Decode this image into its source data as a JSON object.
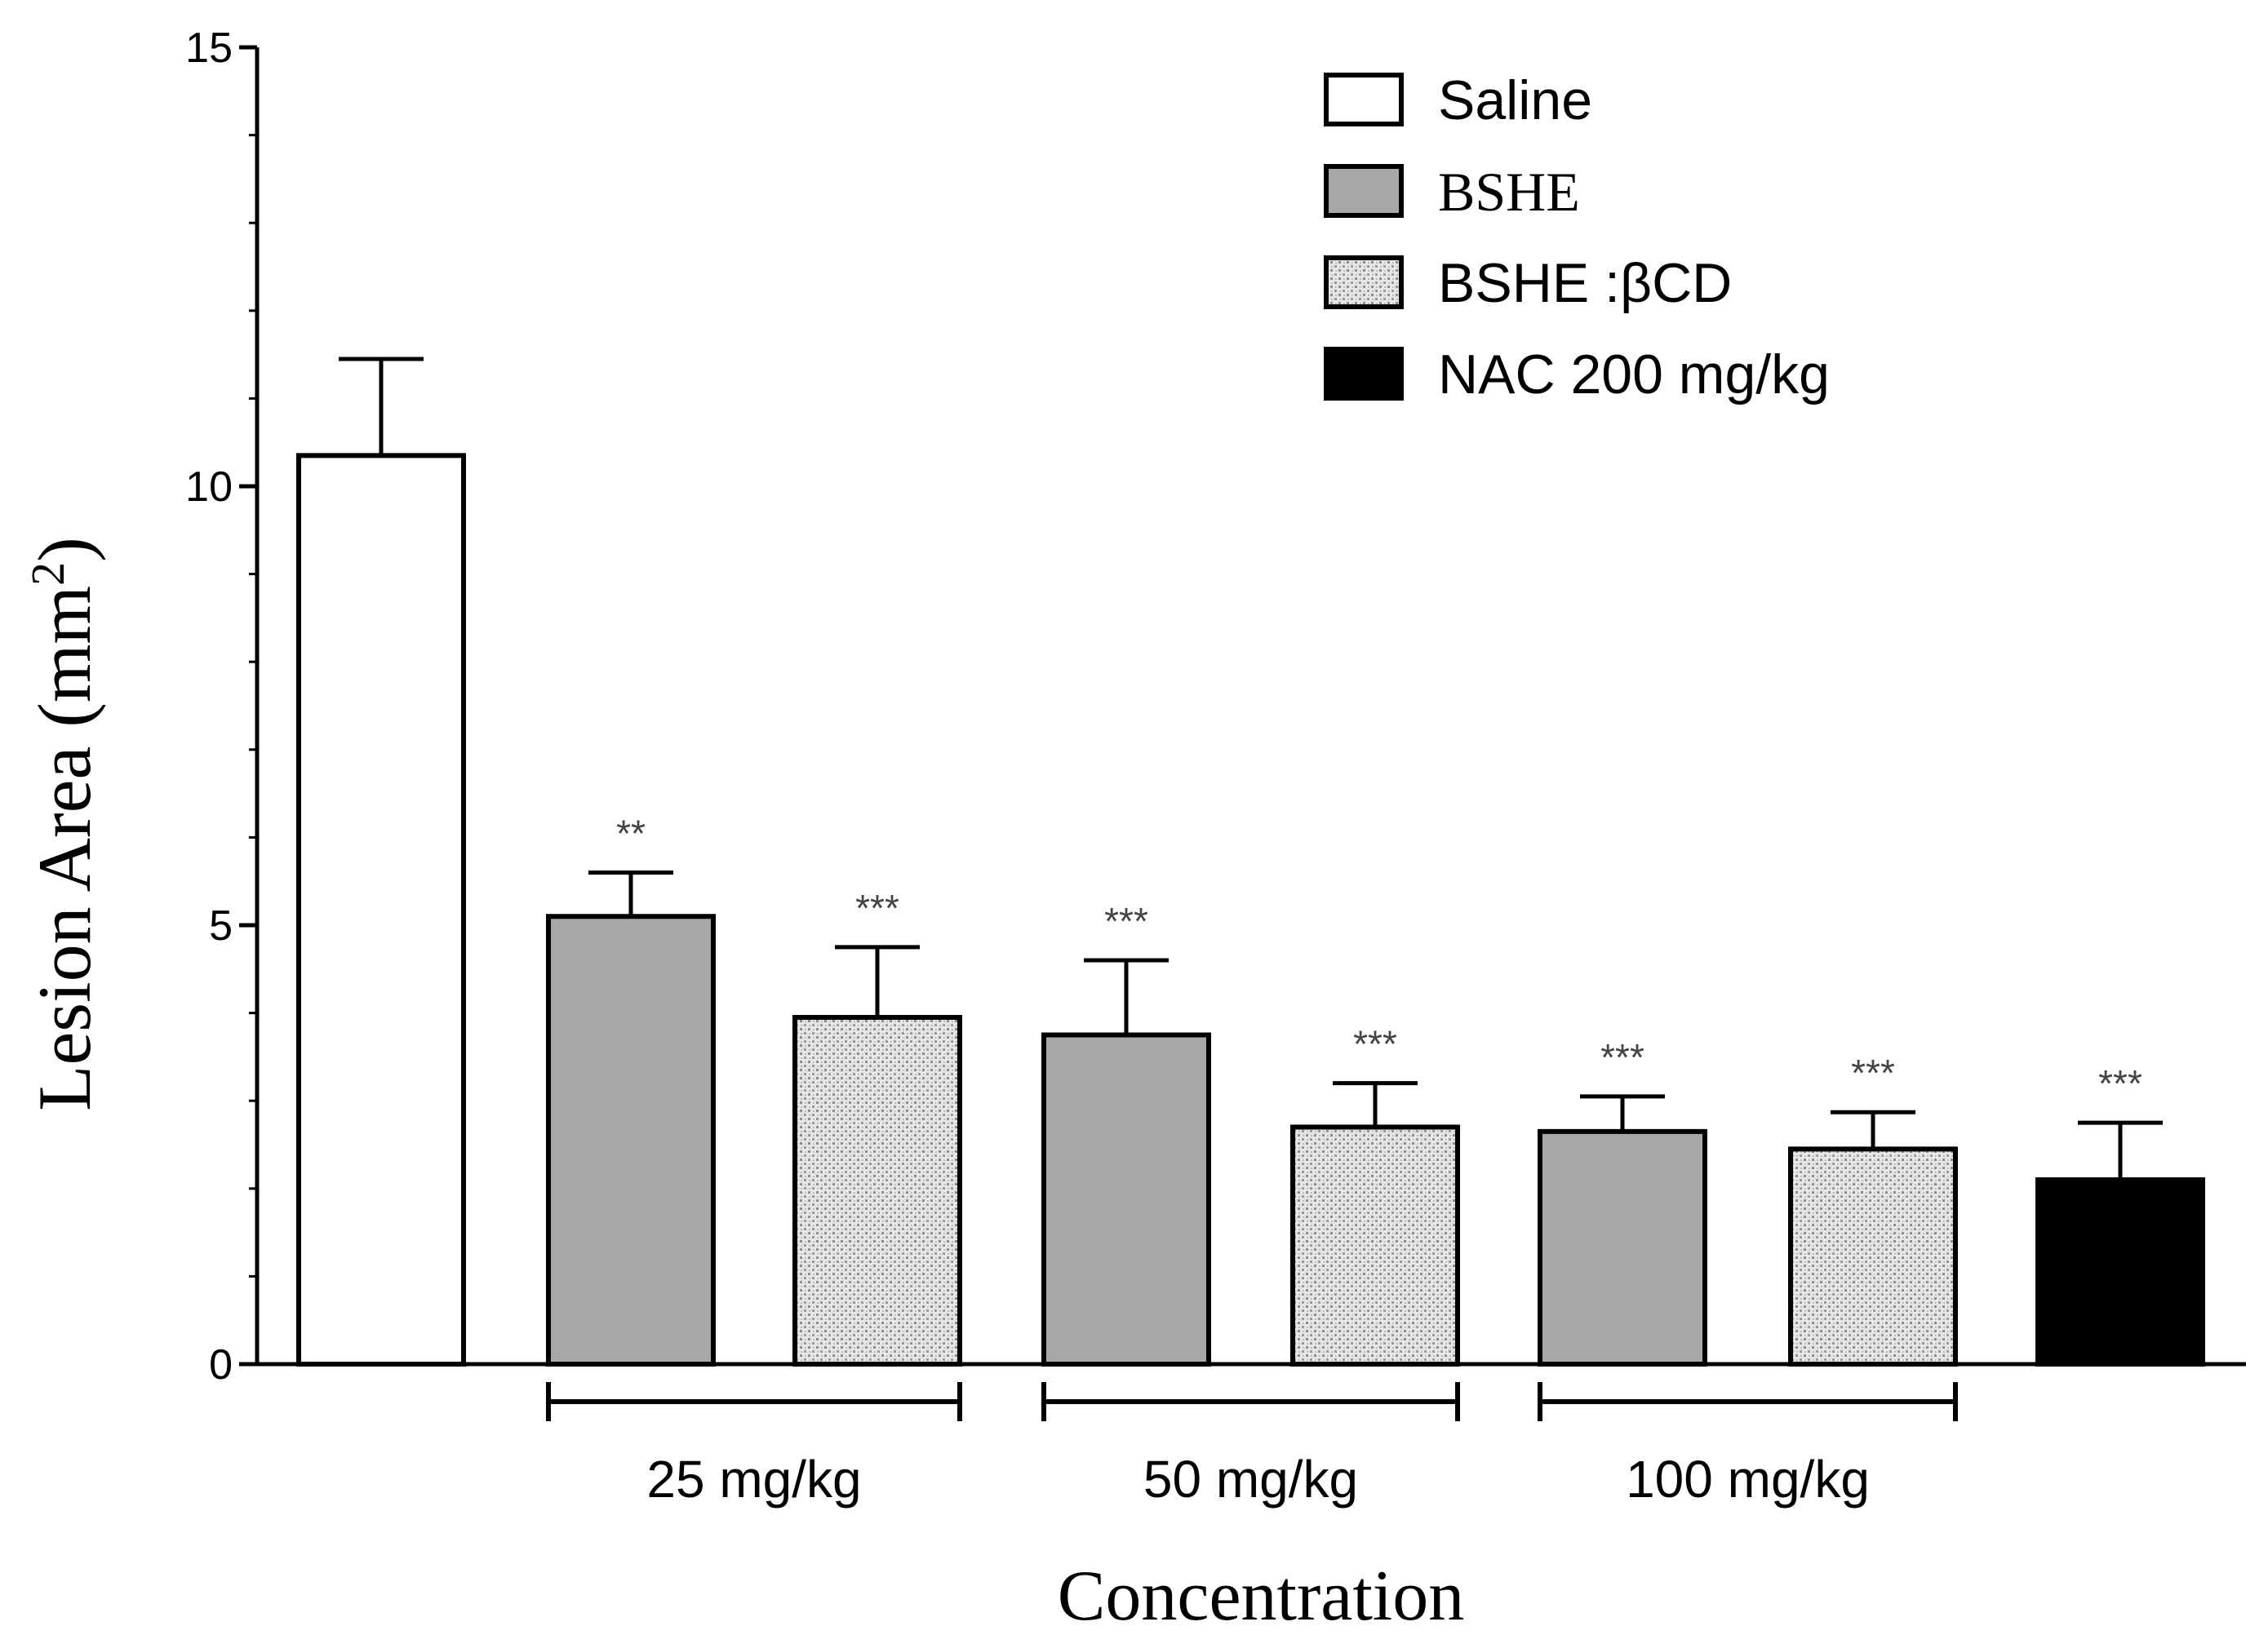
{
  "chart_data": {
    "type": "bar",
    "ylabel": "Lesion Area (mm",
    "ylabel_superscript": "2",
    "ylabel_close": ")",
    "xlabel": "Concentration",
    "ylim": [
      0,
      15
    ],
    "yticks": [
      0,
      5,
      10,
      15
    ],
    "ytick_labels": [
      "0",
      "5",
      "10",
      "15"
    ],
    "legend_position": "top-right",
    "series": [
      {
        "name": "Saline",
        "fill": "#ffffff",
        "pattern": "none"
      },
      {
        "name": "BSHE",
        "fill": "#a8a8ab",
        "pattern": "none"
      },
      {
        "name": "BSHE :βCD",
        "fill": "#e6e6e6",
        "pattern": "stipple"
      },
      {
        "name": "NAC 200 mg/kg",
        "fill": "#000000",
        "pattern": "none"
      }
    ],
    "bars": [
      {
        "series": "Saline",
        "group": "",
        "value": 10.35,
        "error": 1.1,
        "sig": ""
      },
      {
        "series": "BSHE",
        "group": "25 mg/kg",
        "value": 5.1,
        "error": 0.5,
        "sig": "**"
      },
      {
        "series": "BSHE :βCD",
        "group": "25 mg/kg",
        "value": 3.95,
        "error": 0.8,
        "sig": "***"
      },
      {
        "series": "BSHE",
        "group": "50 mg/kg",
        "value": 3.75,
        "error": 0.85,
        "sig": "***"
      },
      {
        "series": "BSHE :βCD",
        "group": "50 mg/kg",
        "value": 2.7,
        "error": 0.5,
        "sig": "***"
      },
      {
        "series": "BSHE",
        "group": "100 mg/kg",
        "value": 2.65,
        "error": 0.4,
        "sig": "***"
      },
      {
        "series": "BSHE :βCD",
        "group": "100 mg/kg",
        "value": 2.45,
        "error": 0.42,
        "sig": "***"
      },
      {
        "series": "NAC 200 mg/kg",
        "group": "",
        "value": 2.1,
        "error": 0.65,
        "sig": "***"
      }
    ],
    "groups": [
      {
        "label": "25 mg/kg",
        "bars": [
          1,
          2
        ]
      },
      {
        "label": "50 mg/kg",
        "bars": [
          3,
          4
        ]
      },
      {
        "label": "100 mg/kg",
        "bars": [
          5,
          6
        ]
      }
    ]
  }
}
